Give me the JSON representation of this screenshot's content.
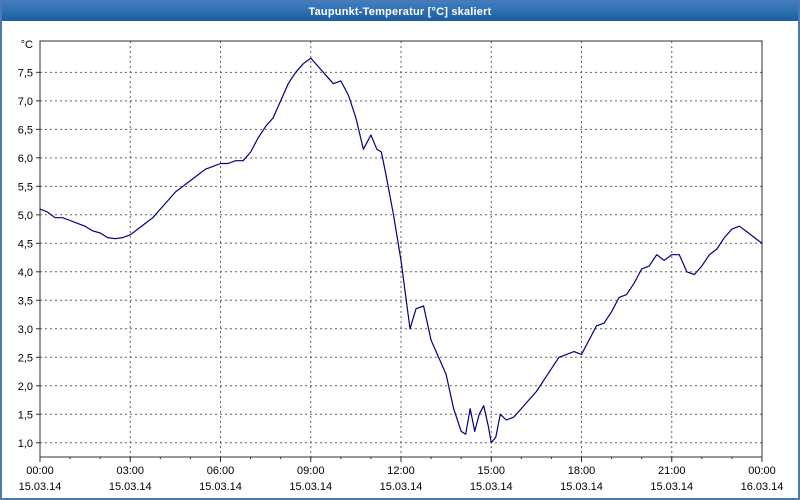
{
  "window": {
    "title": "Taupunkt-Temperatur [°C] skaliert"
  },
  "chart_data": {
    "type": "line",
    "title": "Taupunkt-Temperatur [°C] skaliert",
    "unit_label": "°C",
    "line_color": "#000080",
    "grid": "dashed",
    "legend_position": "none",
    "xlim": [
      0,
      24
    ],
    "ylim": [
      0.75,
      8.05
    ],
    "x_tick_values": [
      0,
      3,
      6,
      9,
      12,
      15,
      18,
      21,
      24
    ],
    "x_tick_labels": [
      "00:00",
      "03:00",
      "06:00",
      "09:00",
      "12:00",
      "15:00",
      "18:00",
      "21:00",
      "00:00"
    ],
    "x_tick_dates": [
      "15.03.14",
      "15.03.14",
      "15.03.14",
      "15.03.14",
      "15.03.14",
      "15.03.14",
      "15.03.14",
      "15.03.14",
      "16.03.14"
    ],
    "x_minor_step_hours": 1,
    "y_tick_values": [
      7.5,
      7.0,
      6.5,
      6.0,
      5.5,
      5.0,
      4.5,
      4.0,
      3.5,
      3.0,
      2.5,
      2.0,
      1.5,
      1.0
    ],
    "y_tick_labels": [
      "7,5",
      "7,0",
      "6,5",
      "6,0",
      "5,5",
      "5,0",
      "4,5",
      "4,0",
      "3,5",
      "3,0",
      "2,5",
      "2,0",
      "1,5",
      "1,0"
    ],
    "series": [
      {
        "name": "Taupunkt-Temperatur",
        "x": [
          0,
          0.25,
          0.5,
          0.75,
          1,
          1.25,
          1.5,
          1.75,
          2,
          2.25,
          2.5,
          2.75,
          3,
          3.25,
          3.5,
          3.75,
          4,
          4.25,
          4.5,
          4.75,
          5,
          5.25,
          5.5,
          5.75,
          6,
          6.25,
          6.5,
          6.75,
          7,
          7.25,
          7.5,
          7.75,
          8,
          8.25,
          8.5,
          8.75,
          9,
          9.25,
          9.5,
          9.75,
          10,
          10.25,
          10.5,
          10.75,
          11,
          11.2,
          11.35,
          11.5,
          11.75,
          12,
          12.15,
          12.3,
          12.5,
          12.75,
          13,
          13.25,
          13.5,
          13.75,
          14,
          14.15,
          14.3,
          14.45,
          14.6,
          14.75,
          14.9,
          15,
          15.15,
          15.3,
          15.5,
          15.75,
          16,
          16.25,
          16.5,
          16.75,
          17,
          17.25,
          17.5,
          17.75,
          18,
          18.25,
          18.5,
          18.75,
          19,
          19.25,
          19.5,
          19.75,
          20,
          20.25,
          20.5,
          20.75,
          21,
          21.25,
          21.5,
          21.75,
          22,
          22.25,
          22.5,
          22.75,
          23,
          23.25,
          23.5,
          23.75,
          24
        ],
        "y": [
          5.1,
          5.05,
          4.95,
          4.95,
          4.9,
          4.85,
          4.8,
          4.72,
          4.68,
          4.6,
          4.58,
          4.6,
          4.65,
          4.75,
          4.85,
          4.95,
          5.1,
          5.25,
          5.4,
          5.5,
          5.6,
          5.7,
          5.8,
          5.85,
          5.9,
          5.9,
          5.95,
          5.95,
          6.1,
          6.35,
          6.55,
          6.7,
          7.0,
          7.3,
          7.5,
          7.65,
          7.75,
          7.6,
          7.45,
          7.3,
          7.35,
          7.1,
          6.7,
          6.15,
          6.4,
          6.15,
          6.1,
          5.7,
          5.0,
          4.2,
          3.6,
          3.0,
          3.35,
          3.4,
          2.8,
          2.5,
          2.2,
          1.6,
          1.2,
          1.15,
          1.6,
          1.2,
          1.5,
          1.65,
          1.3,
          1.0,
          1.1,
          1.5,
          1.4,
          1.45,
          1.6,
          1.75,
          1.9,
          2.1,
          2.3,
          2.5,
          2.55,
          2.6,
          2.55,
          2.8,
          3.05,
          3.1,
          3.3,
          3.55,
          3.6,
          3.8,
          4.05,
          4.1,
          4.3,
          4.2,
          4.3,
          4.3,
          4.0,
          3.95,
          4.1,
          4.3,
          4.4,
          4.6,
          4.75,
          4.8,
          4.7,
          4.6,
          4.5
        ]
      }
    ],
    "colors": {
      "plot_border": "#303030",
      "grid_line": "#606060",
      "tick": "#303030",
      "background": "#ffffff"
    }
  }
}
